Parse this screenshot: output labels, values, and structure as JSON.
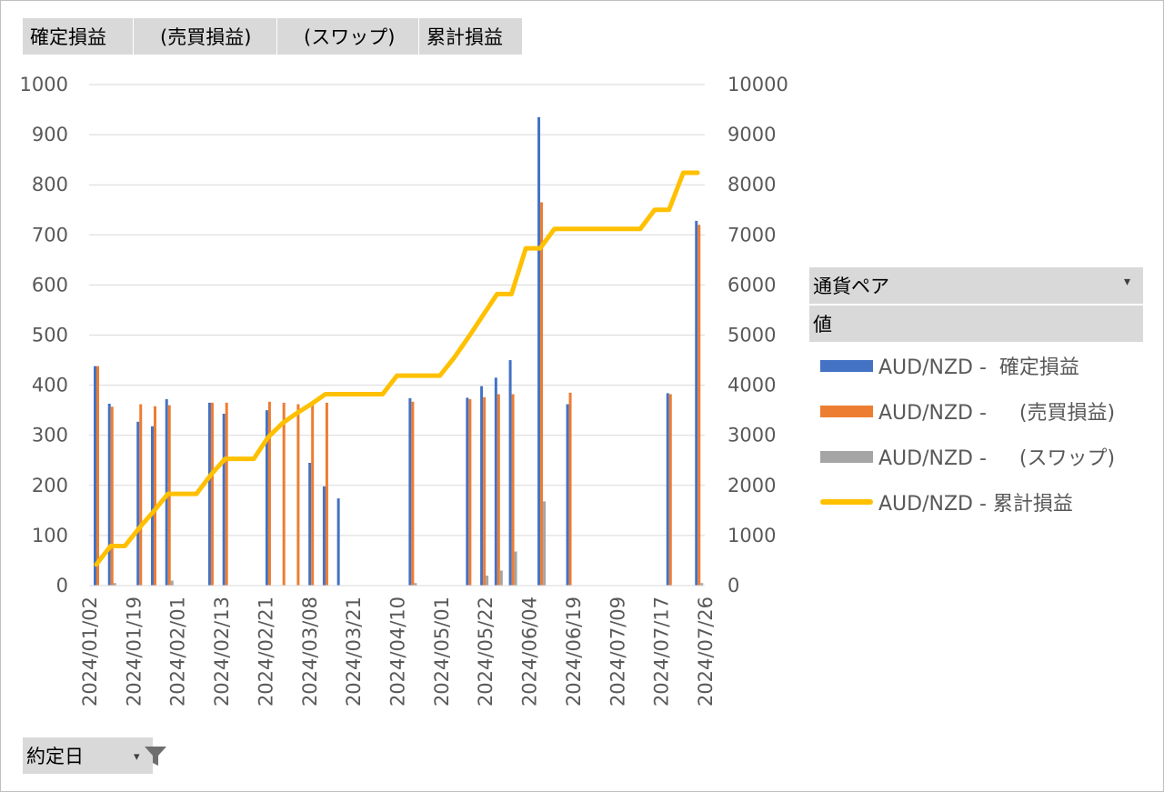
{
  "field_buttons": [
    "確定損益",
    "　(売買損益)",
    "　(スワップ)",
    "累計損益"
  ],
  "legend": {
    "header": "通貨ペア",
    "subheader": "値",
    "items": [
      {
        "label": "AUD/NZD -  確定損益",
        "color": "#4472c4"
      },
      {
        "label": "AUD/NZD -  　(売買損益)",
        "color": "#ed7d31"
      },
      {
        "label": "AUD/NZD -  　(スワップ)",
        "color": "#a5a5a5"
      },
      {
        "label": "AUD/NZD - 累計損益",
        "color": "#ffc000"
      }
    ]
  },
  "date_filter": {
    "label": "約定日"
  },
  "chart_data": {
    "type": "bar",
    "secondary_type": "line",
    "y_left": {
      "min": 0,
      "max": 1000,
      "ticks": [
        0,
        100,
        200,
        300,
        400,
        500,
        600,
        700,
        800,
        900,
        1000
      ]
    },
    "y_right": {
      "min": 0,
      "max": 10000,
      "ticks": [
        0,
        1000,
        2000,
        3000,
        4000,
        5000,
        6000,
        7000,
        8000,
        9000,
        10000
      ]
    },
    "x_tick_labels": [
      "2024/01/02",
      "2024/01/19",
      "2024/02/01",
      "2024/02/13",
      "2024/02/21",
      "2024/03/08",
      "2024/03/21",
      "2024/04/10",
      "2024/05/01",
      "2024/05/22",
      "2024/06/04",
      "2024/06/19",
      "2024/07/09",
      "2024/07/17",
      "2024/07/26"
    ],
    "n_categories": 43,
    "bar_series": [
      {
        "name": "AUD/NZD -  確定損益",
        "color": "#4472c4",
        "values": [
          438,
          363,
          0,
          327,
          318,
          372,
          0,
          0,
          365,
          343,
          0,
          0,
          350,
          0,
          0,
          245,
          198,
          174,
          0,
          0,
          0,
          0,
          374,
          0,
          0,
          0,
          375,
          398,
          415,
          450,
          0,
          935,
          0,
          362,
          0,
          0,
          0,
          0,
          0,
          0,
          384,
          0,
          728
        ]
      },
      {
        "name": "AUD/NZD -  　(売買損益)",
        "color": "#ed7d31",
        "values": [
          438,
          357,
          0,
          362,
          358,
          360,
          0,
          0,
          365,
          365,
          0,
          0,
          367,
          365,
          362,
          360,
          365,
          0,
          0,
          0,
          0,
          0,
          367,
          0,
          0,
          0,
          372,
          376,
          382,
          382,
          0,
          765,
          0,
          385,
          0,
          0,
          0,
          0,
          0,
          0,
          382,
          0,
          720
        ]
      },
      {
        "name": "AUD/NZD -  　(スワップ)",
        "color": "#a5a5a5",
        "values": [
          0,
          5,
          0,
          0,
          0,
          10,
          0,
          0,
          0,
          0,
          0,
          0,
          0,
          0,
          0,
          0,
          0,
          0,
          0,
          0,
          0,
          0,
          5,
          0,
          0,
          0,
          0,
          20,
          30,
          68,
          0,
          168,
          0,
          0,
          0,
          0,
          0,
          0,
          0,
          0,
          0,
          0,
          5
        ]
      }
    ],
    "line_series": {
      "name": "AUD/NZD - 累計損益",
      "color": "#ffc000",
      "values": [
        420,
        790,
        790,
        1150,
        1480,
        1830,
        1830,
        1830,
        2210,
        2530,
        2530,
        2530,
        2960,
        3240,
        3440,
        3620,
        3820,
        3820,
        3820,
        3820,
        3820,
        4190,
        4190,
        4190,
        4190,
        4550,
        4960,
        5390,
        5820,
        5820,
        6730,
        6730,
        7120,
        7120,
        7120,
        7120,
        7120,
        7120,
        7120,
        7500,
        7500,
        8240,
        8240
      ]
    }
  }
}
